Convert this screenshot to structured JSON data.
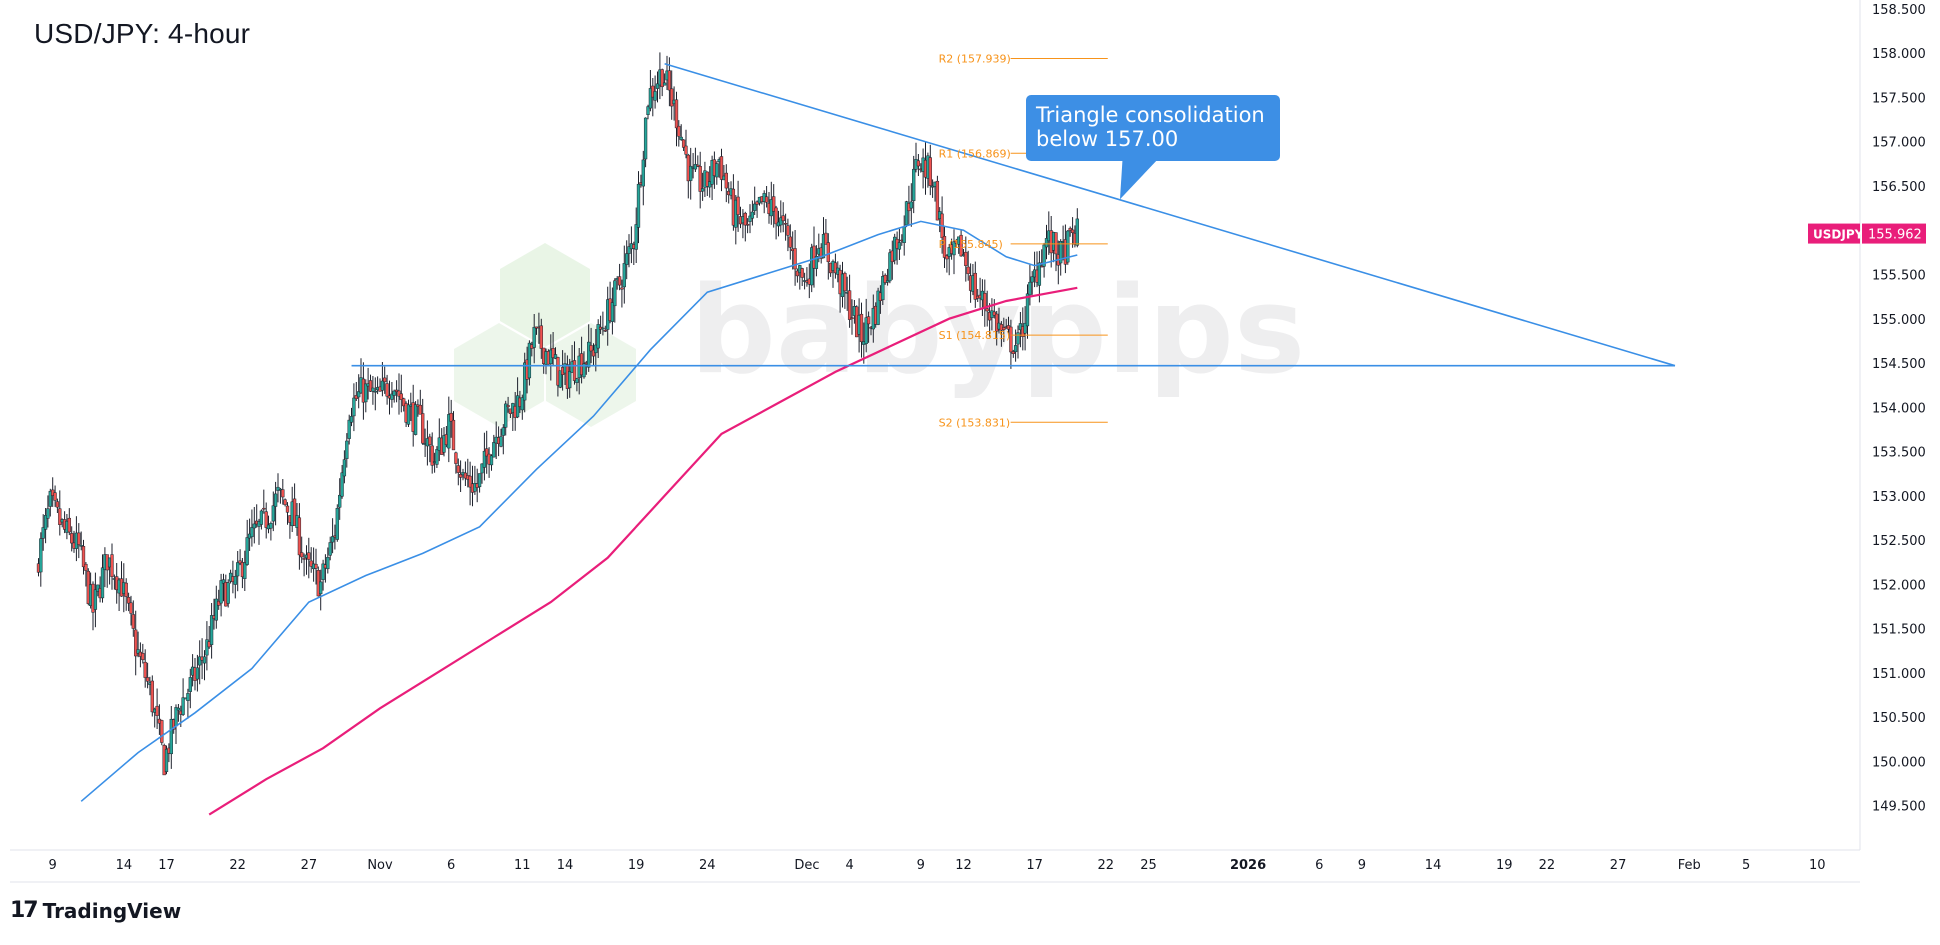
{
  "title": "USD/JPY: 4-hour",
  "footer": {
    "brand": "TradingView",
    "logo_icon": "tradingview-logo-icon"
  },
  "watermark": "babypips",
  "chart_data": {
    "type": "candlestick",
    "symbol": "USDJPY",
    "last_price_label": "155.962",
    "last_price": 155.962,
    "ylim": [
      149.0,
      158.6
    ],
    "y_ticks": [
      "158.500",
      "158.000",
      "157.500",
      "157.000",
      "156.500",
      "156.000",
      "155.500",
      "155.000",
      "154.500",
      "154.000",
      "153.500",
      "153.000",
      "152.500",
      "152.000",
      "151.500",
      "151.000",
      "150.500",
      "150.000",
      "149.500"
    ],
    "x_ticks": [
      {
        "label": "9",
        "date": "2025-10-09"
      },
      {
        "label": "14",
        "date": "2025-10-14"
      },
      {
        "label": "17",
        "date": "2025-10-17"
      },
      {
        "label": "22",
        "date": "2025-10-22"
      },
      {
        "label": "27",
        "date": "2025-10-27"
      },
      {
        "label": "Nov",
        "date": "2025-11-01"
      },
      {
        "label": "6",
        "date": "2025-11-06"
      },
      {
        "label": "11",
        "date": "2025-11-11"
      },
      {
        "label": "14",
        "date": "2025-11-14"
      },
      {
        "label": "19",
        "date": "2025-11-19"
      },
      {
        "label": "24",
        "date": "2025-11-24"
      },
      {
        "label": "Dec",
        "date": "2025-12-01"
      },
      {
        "label": "4",
        "date": "2025-12-04"
      },
      {
        "label": "9",
        "date": "2025-12-09"
      },
      {
        "label": "12",
        "date": "2025-12-12"
      },
      {
        "label": "17",
        "date": "2025-12-17"
      },
      {
        "label": "22",
        "date": "2025-12-22"
      },
      {
        "label": "25",
        "date": "2025-12-25"
      },
      {
        "label": "2026",
        "date": "2026-01-01"
      },
      {
        "label": "6",
        "date": "2026-01-06"
      },
      {
        "label": "9",
        "date": "2026-01-09"
      },
      {
        "label": "14",
        "date": "2026-01-14"
      },
      {
        "label": "19",
        "date": "2026-01-19"
      },
      {
        "label": "22",
        "date": "2026-01-22"
      },
      {
        "label": "27",
        "date": "2026-01-27"
      },
      {
        "label": "Feb",
        "date": "2026-02-01"
      },
      {
        "label": "5",
        "date": "2026-02-05"
      },
      {
        "label": "10",
        "date": "2026-02-10"
      }
    ],
    "price_path": [
      [
        "2025-10-08",
        152.2
      ],
      [
        "2025-10-09",
        152.9
      ],
      [
        "2025-10-10",
        152.6
      ],
      [
        "2025-10-11",
        152.4
      ],
      [
        "2025-10-12",
        151.7
      ],
      [
        "2025-10-13",
        152.3
      ],
      [
        "2025-10-14",
        152.0
      ],
      [
        "2025-10-15",
        151.3
      ],
      [
        "2025-10-16",
        150.8
      ],
      [
        "2025-10-17",
        150.0
      ],
      [
        "2025-10-18",
        150.6
      ],
      [
        "2025-10-19",
        150.9
      ],
      [
        "2025-10-20",
        151.3
      ],
      [
        "2025-10-21",
        151.9
      ],
      [
        "2025-10-22",
        152.0
      ],
      [
        "2025-10-23",
        152.5
      ],
      [
        "2025-10-24",
        152.7
      ],
      [
        "2025-10-25",
        153.0
      ],
      [
        "2025-10-26",
        152.8
      ],
      [
        "2025-10-27",
        152.2
      ],
      [
        "2025-10-28",
        152.0
      ],
      [
        "2025-10-29",
        152.6
      ],
      [
        "2025-10-30",
        154.0
      ],
      [
        "2025-10-31",
        154.2
      ],
      [
        "2025-11-01",
        154.1
      ],
      [
        "2025-11-02",
        154.3
      ],
      [
        "2025-11-03",
        154.0
      ],
      [
        "2025-11-04",
        153.8
      ],
      [
        "2025-11-05",
        153.4
      ],
      [
        "2025-11-06",
        153.8
      ],
      [
        "2025-11-07",
        153.2
      ],
      [
        "2025-11-08",
        153.1
      ],
      [
        "2025-11-09",
        153.6
      ],
      [
        "2025-11-10",
        153.9
      ],
      [
        "2025-11-11",
        154.1
      ],
      [
        "2025-11-12",
        154.8
      ],
      [
        "2025-11-13",
        154.6
      ],
      [
        "2025-11-14",
        154.3
      ],
      [
        "2025-11-15",
        154.5
      ],
      [
        "2025-11-16",
        154.6
      ],
      [
        "2025-11-17",
        155.0
      ],
      [
        "2025-11-18",
        155.4
      ],
      [
        "2025-11-19",
        155.9
      ],
      [
        "2025-11-20",
        157.5
      ],
      [
        "2025-11-21",
        157.8
      ],
      [
        "2025-11-22",
        157.3
      ],
      [
        "2025-11-23",
        156.6
      ],
      [
        "2025-11-24",
        156.5
      ],
      [
        "2025-11-25",
        156.8
      ],
      [
        "2025-11-26",
        156.2
      ],
      [
        "2025-11-27",
        156.0
      ],
      [
        "2025-11-28",
        156.3
      ],
      [
        "2025-11-29",
        156.2
      ],
      [
        "2025-11-30",
        155.8
      ],
      [
        "2025-12-01",
        155.4
      ],
      [
        "2025-12-02",
        155.9
      ],
      [
        "2025-12-03",
        155.6
      ],
      [
        "2025-12-04",
        155.2
      ],
      [
        "2025-12-05",
        154.8
      ],
      [
        "2025-12-06",
        155.1
      ],
      [
        "2025-12-07",
        155.7
      ],
      [
        "2025-12-08",
        156.1
      ],
      [
        "2025-12-09",
        156.8
      ],
      [
        "2025-12-10",
        156.6
      ],
      [
        "2025-12-11",
        155.6
      ],
      [
        "2025-12-12",
        155.8
      ],
      [
        "2025-12-13",
        155.3
      ],
      [
        "2025-12-14",
        155.1
      ],
      [
        "2025-12-15",
        154.8
      ],
      [
        "2025-12-16",
        154.7
      ],
      [
        "2025-12-17",
        155.4
      ],
      [
        "2025-12-18",
        155.9
      ],
      [
        "2025-12-19",
        155.7
      ],
      [
        "2025-12-20",
        155.96
      ]
    ],
    "ma_blue": [
      [
        "2025-10-11",
        149.55
      ],
      [
        "2025-10-15",
        150.1
      ],
      [
        "2025-10-19",
        150.55
      ],
      [
        "2025-10-23",
        151.05
      ],
      [
        "2025-10-27",
        151.8
      ],
      [
        "2025-10-31",
        152.1
      ],
      [
        "2025-11-04",
        152.35
      ],
      [
        "2025-11-08",
        152.65
      ],
      [
        "2025-11-12",
        153.3
      ],
      [
        "2025-11-16",
        153.9
      ],
      [
        "2025-11-20",
        154.65
      ],
      [
        "2025-11-24",
        155.3
      ],
      [
        "2025-11-28",
        155.5
      ],
      [
        "2025-12-02",
        155.7
      ],
      [
        "2025-12-06",
        155.95
      ],
      [
        "2025-12-09",
        156.1
      ],
      [
        "2025-12-12",
        156.0
      ],
      [
        "2025-12-15",
        155.7
      ],
      [
        "2025-12-17",
        155.6
      ],
      [
        "2025-12-20",
        155.72
      ]
    ],
    "ma_pink": [
      [
        "2025-10-20",
        149.4
      ],
      [
        "2025-10-24",
        149.8
      ],
      [
        "2025-10-28",
        150.15
      ],
      [
        "2025-11-01",
        150.6
      ],
      [
        "2025-11-05",
        151.0
      ],
      [
        "2025-11-09",
        151.4
      ],
      [
        "2025-11-13",
        151.8
      ],
      [
        "2025-11-17",
        152.3
      ],
      [
        "2025-11-21",
        153.0
      ],
      [
        "2025-11-25",
        153.7
      ],
      [
        "2025-11-29",
        154.05
      ],
      [
        "2025-12-03",
        154.4
      ],
      [
        "2025-12-07",
        154.7
      ],
      [
        "2025-12-11",
        155.0
      ],
      [
        "2025-12-15",
        155.2
      ],
      [
        "2025-12-20",
        155.35
      ]
    ],
    "pivots": [
      {
        "label": "R2 (157.939)",
        "value": 157.939
      },
      {
        "label": "R1 (156.869)",
        "value": 156.869
      },
      {
        "label": "P (155.845)",
        "value": 155.845
      },
      {
        "label": "S1 (154.815)",
        "value": 154.815
      },
      {
        "label": "S2 (153.831)",
        "value": 153.831
      }
    ],
    "pivot_range": [
      "2025-12-17",
      "2025-12-22"
    ],
    "support_line": {
      "from": "2025-10-30",
      "to": "2026-01-31",
      "value": 154.47
    },
    "triangle_line": {
      "from": [
        "2025-11-21",
        157.88
      ],
      "to": [
        "2026-01-31",
        154.47
      ]
    },
    "annotation": {
      "lines": [
        "Triangle consolidation",
        "below 157.00"
      ],
      "target": [
        "2025-12-23",
        156.35
      ]
    },
    "colors": {
      "up": "#26a69a",
      "down": "#ef5350",
      "ma_blue": "#3a8fe6",
      "ma_pink": "#e91e7a",
      "pivot": "#f7931a",
      "trend": "#3a8fe6",
      "callout": "#3d8fe5",
      "price_tag": "#e91e7a"
    }
  }
}
